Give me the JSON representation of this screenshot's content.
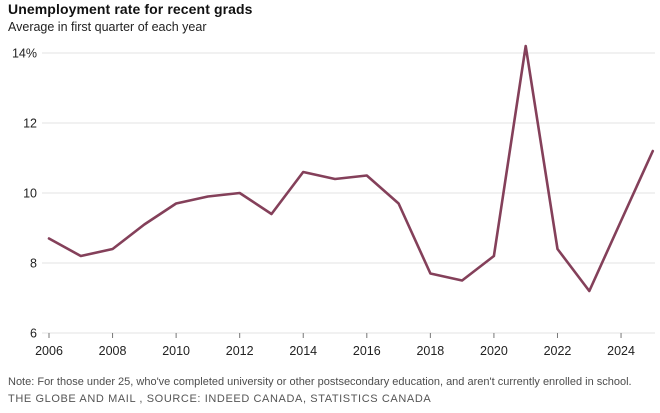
{
  "header": {
    "title": "Unemployment rate for recent grads",
    "subtitle": "Average in first quarter of each year"
  },
  "footer": {
    "note": "Note: For those under 25, who've completed university or other postsecondary education, and aren't currently enrolled in school.",
    "source": "THE GLOBE AND MAIL , SOURCE: INDEED CANADA, STATISTICS CANADA"
  },
  "colors": {
    "line": "#84405a",
    "grid": "#e3e3e3",
    "tick": "#777777",
    "axis_text": "#222222"
  },
  "chart_data": {
    "type": "line",
    "title": "Unemployment rate for recent grads",
    "subtitle": "Average in first quarter of each year",
    "series": [
      {
        "name": "Unemployment rate (%)",
        "x": [
          2006,
          2007,
          2008,
          2009,
          2010,
          2011,
          2012,
          2013,
          2014,
          2015,
          2016,
          2017,
          2018,
          2019,
          2020,
          2021,
          2022,
          2023,
          2024,
          2025
        ],
        "values": [
          8.7,
          8.2,
          8.4,
          9.1,
          9.7,
          9.9,
          10.0,
          9.4,
          10.6,
          10.4,
          10.5,
          9.7,
          7.7,
          7.5,
          8.2,
          14.2,
          8.4,
          7.2,
          9.2,
          11.2
        ]
      }
    ],
    "xlabel": "",
    "ylabel": "",
    "xlim": [
      2005.8,
      2025.2
    ],
    "ylim": [
      6,
      14
    ],
    "grid": "horizontal",
    "legend": "none",
    "yticks": [
      {
        "value": 14,
        "label": "14%"
      },
      {
        "value": 12,
        "label": "12"
      },
      {
        "value": 10,
        "label": "10"
      },
      {
        "value": 8,
        "label": "8"
      },
      {
        "value": 6,
        "label": "6"
      }
    ],
    "xticks": [
      {
        "value": 2006,
        "label": "2006"
      },
      {
        "value": 2008,
        "label": "2008"
      },
      {
        "value": 2010,
        "label": "2010"
      },
      {
        "value": 2012,
        "label": "2012"
      },
      {
        "value": 2014,
        "label": "2014"
      },
      {
        "value": 2016,
        "label": "2016"
      },
      {
        "value": 2018,
        "label": "2018"
      },
      {
        "value": 2020,
        "label": "2020"
      },
      {
        "value": 2022,
        "label": "2022"
      },
      {
        "value": 2024,
        "label": "2024"
      }
    ]
  }
}
